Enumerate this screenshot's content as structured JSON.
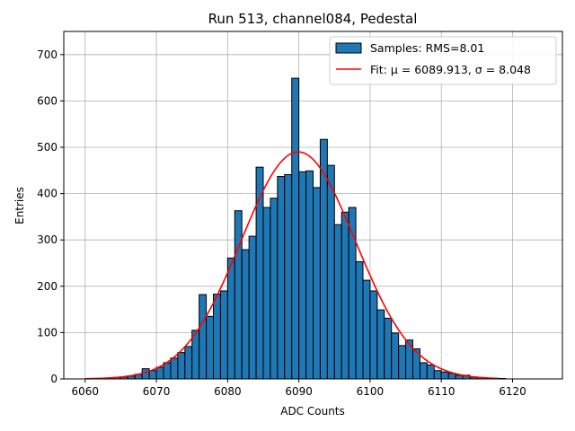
{
  "chart_data": {
    "type": "bar",
    "title": "Run 513, channel084, Pedestal",
    "xlabel": "ADC Counts",
    "ylabel": "Entries",
    "xlim": [
      6057,
      6127
    ],
    "ylim": [
      0,
      750
    ],
    "xticks": [
      6060,
      6070,
      6080,
      6090,
      6100,
      6110,
      6120
    ],
    "yticks": [
      0,
      100,
      200,
      300,
      400,
      500,
      600,
      700
    ],
    "grid": true,
    "legend_position": "top-right",
    "series": [
      {
        "name": "Samples: RMS=8.01",
        "kind": "histogram",
        "color": "#1f77b4",
        "edgecolor": "#000000",
        "bin_width": 1,
        "bin_starts": [
          6060,
          6061,
          6062,
          6063,
          6064,
          6065,
          6066,
          6067,
          6068,
          6069,
          6070,
          6071,
          6072,
          6073,
          6074,
          6075,
          6076,
          6077,
          6078,
          6079,
          6080,
          6081,
          6082,
          6083,
          6084,
          6085,
          6086,
          6087,
          6088,
          6089,
          6090,
          6091,
          6092,
          6093,
          6094,
          6095,
          6096,
          6097,
          6098,
          6099,
          6100,
          6101,
          6102,
          6103,
          6104,
          6105,
          6106,
          6107,
          6108,
          6109,
          6110,
          6111,
          6112,
          6113,
          6114,
          6115,
          6116,
          6117,
          6118,
          6119,
          6120,
          6121,
          6122,
          6123
        ],
        "counts": [
          0,
          1,
          1,
          2,
          3,
          4,
          6,
          10,
          22,
          18,
          25,
          35,
          45,
          57,
          70,
          105,
          182,
          135,
          183,
          190,
          261,
          363,
          279,
          308,
          457,
          370,
          390,
          437,
          441,
          649,
          447,
          449,
          413,
          517,
          461,
          333,
          360,
          370,
          253,
          213,
          190,
          149,
          131,
          99,
          72,
          84,
          65,
          35,
          30,
          18,
          15,
          12,
          8,
          8,
          4,
          3,
          2,
          1,
          1,
          0,
          0,
          0,
          0,
          0
        ]
      },
      {
        "name": "Fit: μ = 6089.913, σ = 8.048",
        "kind": "gaussian-fit",
        "color": "#ff0000",
        "mu": 6089.913,
        "sigma": 8.048,
        "amplitude": 490,
        "x_range": [
          6060,
          6118
        ]
      }
    ]
  }
}
